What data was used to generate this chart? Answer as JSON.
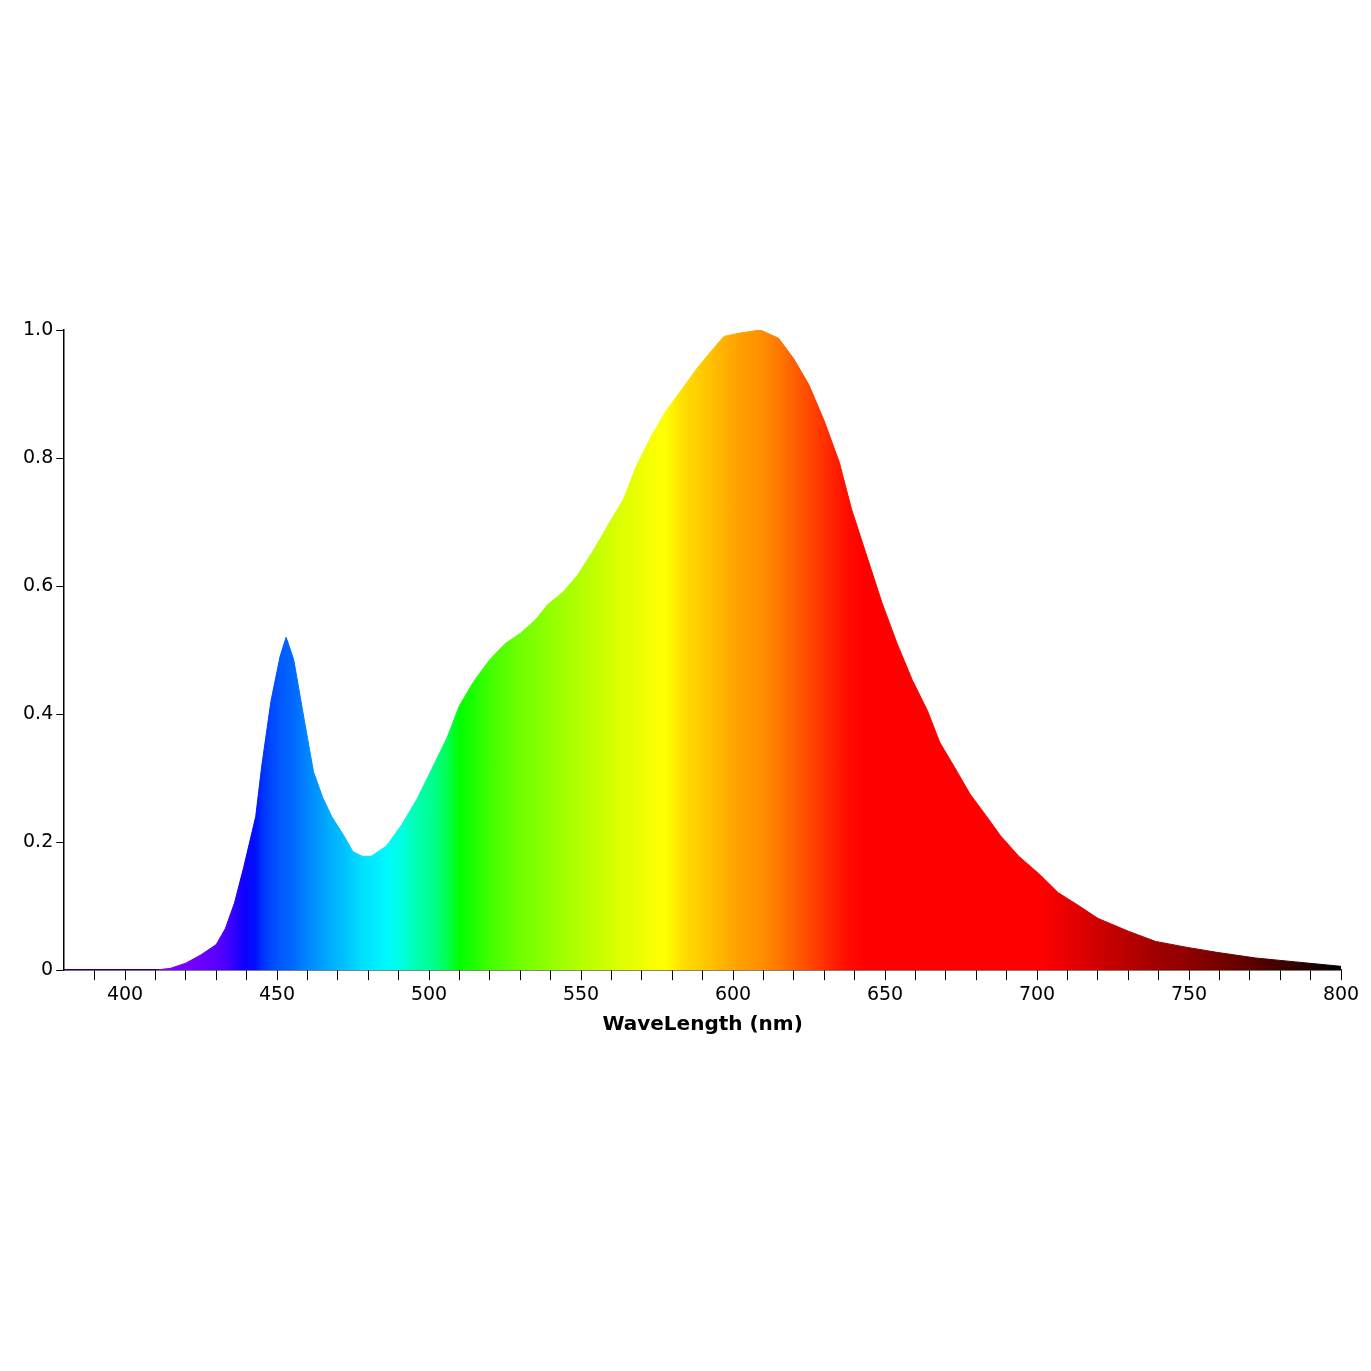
{
  "chart_data": {
    "type": "area",
    "xlabel": "WaveLength (nm)",
    "x": [
      380,
      410,
      415,
      420,
      425,
      430,
      433,
      436,
      439,
      443,
      445,
      448,
      451,
      453,
      455.5,
      459,
      462,
      465,
      468,
      472,
      475,
      478,
      481,
      486,
      491,
      496,
      501,
      506,
      510,
      515,
      520,
      525,
      530,
      535,
      539,
      544,
      549,
      554,
      559,
      564,
      568,
      573,
      578,
      583,
      588,
      593,
      597,
      602,
      609,
      615,
      620,
      625,
      630,
      635,
      639,
      644,
      649,
      654,
      659,
      664,
      668,
      673,
      678,
      683,
      688,
      694,
      701,
      707,
      714,
      720,
      730,
      739,
      749,
      759,
      772,
      785,
      800
    ],
    "series": [
      {
        "values": [
          0,
          0,
          0.003,
          0.011,
          0.024,
          0.04,
          0.065,
          0.105,
          0.16,
          0.24,
          0.32,
          0.42,
          0.49,
          0.52,
          0.485,
          0.39,
          0.31,
          0.27,
          0.24,
          0.21,
          0.185,
          0.178,
          0.178,
          0.194,
          0.227,
          0.267,
          0.315,
          0.364,
          0.413,
          0.453,
          0.485,
          0.51,
          0.526,
          0.547,
          0.571,
          0.59,
          0.618,
          0.655,
          0.696,
          0.736,
          0.785,
          0.833,
          0.874,
          0.906,
          0.939,
          0.968,
          0.99,
          0.995,
          1.0,
          0.987,
          0.955,
          0.914,
          0.858,
          0.793,
          0.72,
          0.647,
          0.574,
          0.51,
          0.453,
          0.405,
          0.356,
          0.316,
          0.275,
          0.243,
          0.21,
          0.178,
          0.149,
          0.121,
          0.1,
          0.081,
          0.061,
          0.045,
          0.036,
          0.028,
          0.019,
          0.013,
          0.006
        ],
        "colors": [
          "#8000ff",
          "#8000ff",
          "#7c00ff",
          "#7800ff",
          "#6a00ff",
          "#5a00ff",
          "#4800ff",
          "#3000ff",
          "#1000ff",
          "#0010ff",
          "#0030ff",
          "#0048ff",
          "#0058ff",
          "#0060ff",
          "#0068ff",
          "#0080ff",
          "#0090ff",
          "#00a0ff",
          "#00b0ff",
          "#00c0ff",
          "#00d0ff",
          "#00e0ff",
          "#00e8ff",
          "#00f8ff",
          "#00ffe0",
          "#00ffb0",
          "#00ff90",
          "#00ff50",
          "#00ff00",
          "#20ff00",
          "#40ff00",
          "#58ff00",
          "#70ff00",
          "#80ff00",
          "#90ff00",
          "#a0ff00",
          "#b0ff00",
          "#c0ff00",
          "#d0ff00",
          "#e0ff00",
          "#e8ff00",
          "#f8ff00",
          "#ffff00",
          "#ffe000",
          "#ffd000",
          "#ffc000",
          "#ffb000",
          "#ffa000",
          "#ff9000",
          "#ff7800",
          "#ff6000",
          "#ff4800",
          "#ff3000",
          "#ff1800",
          "#ff0800",
          "#ff0000",
          "#ff0000",
          "#ff0000",
          "#ff0000",
          "#ff0000",
          "#ff0000",
          "#ff0000",
          "#ff0000",
          "#ff0000",
          "#ff0000",
          "#ff0000",
          "#ff0000",
          "#f00000",
          "#e00000",
          "#d00000",
          "#b80000",
          "#a00000",
          "#900000",
          "#780000",
          "#580000",
          "#300000",
          "#000000"
        ]
      }
    ],
    "xlim": [
      380,
      800
    ],
    "xticks": [
      {
        "value": 390,
        "label": null
      },
      400,
      {
        "value": 410,
        "label": null
      },
      {
        "value": 420,
        "label": null
      },
      {
        "value": 430,
        "label": null
      },
      {
        "value": 440,
        "label": null
      },
      450,
      {
        "value": 460,
        "label": null
      },
      {
        "value": 470,
        "label": null
      },
      {
        "value": 480,
        "label": null
      },
      {
        "value": 490,
        "label": null
      },
      500,
      {
        "value": 510,
        "label": null
      },
      {
        "value": 520,
        "label": null
      },
      {
        "value": 530,
        "label": null
      },
      {
        "value": 540,
        "label": null
      },
      550,
      {
        "value": 560,
        "label": null
      },
      {
        "value": 570,
        "label": null
      },
      {
        "value": 580,
        "label": null
      },
      {
        "value": 590,
        "label": null
      },
      600,
      {
        "value": 610,
        "label": null
      },
      {
        "value": 620,
        "label": null
      },
      {
        "value": 630,
        "label": null
      },
      {
        "value": 640,
        "label": null
      },
      650,
      {
        "value": 660,
        "label": null
      },
      {
        "value": 670,
        "label": null
      },
      {
        "value": 680,
        "label": null
      },
      {
        "value": 690,
        "label": null
      },
      700,
      {
        "value": 710,
        "label": null
      },
      {
        "value": 720,
        "label": null
      },
      {
        "value": 730,
        "label": null
      },
      {
        "value": 740,
        "label": null
      },
      750,
      {
        "value": 760,
        "label": null
      },
      {
        "value": 770,
        "label": null
      },
      {
        "value": 780,
        "label": null
      },
      {
        "value": 790,
        "label": null
      },
      800
    ],
    "ylim": [
      0,
      1
    ],
    "yticks": [
      0,
      0.2,
      0.4,
      0.6,
      0.8,
      {
        "value": 1,
        "label": "1.0"
      }
    ],
    "grid": false,
    "legend": false
  }
}
